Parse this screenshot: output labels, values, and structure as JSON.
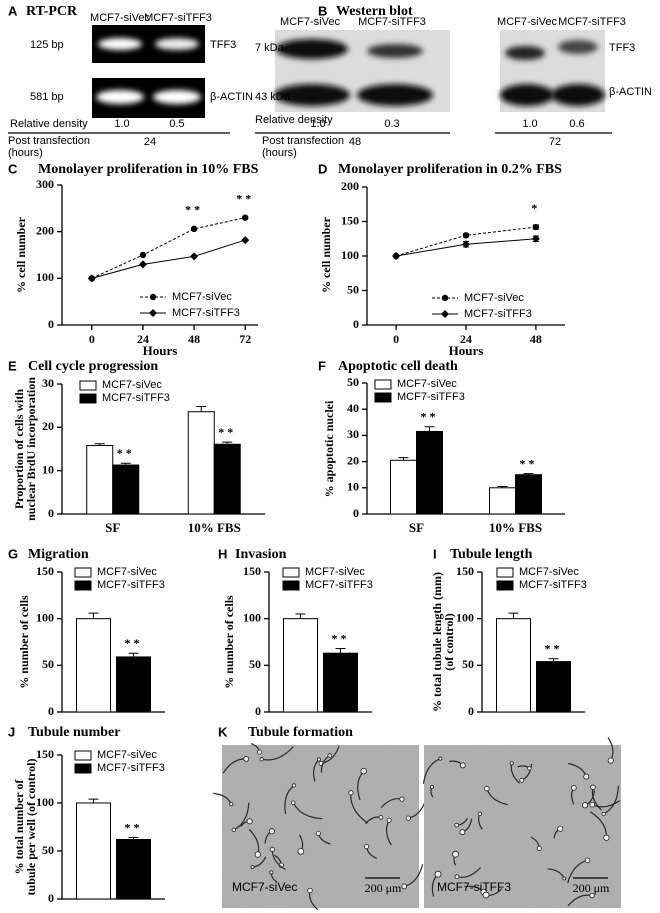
{
  "rt_pcr": {
    "panel_label": "A",
    "title": "RT-PCR",
    "lanes": [
      "MCF7-siVec",
      "MCF7-siTFF3"
    ],
    "sizes": [
      "125 bp",
      "581 bp"
    ],
    "targets": [
      "TFF3",
      "β-ACTIN"
    ],
    "density_label": "Relative density",
    "densities": [
      "1.0",
      "0.5"
    ],
    "time_label": [
      "Post transfection",
      "(hours)"
    ],
    "time": "24"
  },
  "western_blot": {
    "panel_label": "B",
    "title": "Western blot",
    "sizes": [
      "7 kDa",
      "43  kDa"
    ],
    "targets": [
      "TFF3",
      "β-ACTIN"
    ],
    "density_label": "Relative density",
    "time_label": [
      "Post transfection",
      "(hours)"
    ],
    "groups": [
      {
        "lanes": [
          "MCF7-siVec",
          "MCF7-siTFF3"
        ],
        "densities": [
          "1.0",
          "0.3"
        ],
        "time": "48"
      },
      {
        "lanes": [
          "MCF7-siVec",
          "MCF7-siTFF3"
        ],
        "densities": [
          "1.0",
          "0.6"
        ],
        "time": "72"
      }
    ]
  },
  "chart_data": [
    {
      "type": "line",
      "panel_label": "C",
      "title": "Monolayer proliferation in 10% FBS",
      "x_label": "Hours",
      "y_label": "% cell number",
      "x": [
        0,
        24,
        48,
        72
      ],
      "xlim": [
        -14,
        78
      ],
      "xticks": [
        0,
        24,
        48,
        72
      ],
      "ylim": [
        0,
        300
      ],
      "yticks": [
        0,
        100,
        200,
        300
      ],
      "series": [
        {
          "name": "MCF7-siVec",
          "color": "#000000",
          "line_style": "dashed",
          "marker": "circle",
          "values": [
            100,
            150,
            206,
            230
          ],
          "annotations": [
            null,
            null,
            "**",
            "**"
          ]
        },
        {
          "name": "MCF7-siTFF3",
          "color": "#000000",
          "line_style": "solid",
          "marker": "diamond",
          "values": [
            100,
            130,
            147,
            182
          ]
        }
      ]
    },
    {
      "type": "line",
      "panel_label": "D",
      "title": "Monolayer proliferation in 0.2% FBS",
      "x_label": "Hours",
      "y_label": "% cell number",
      "x": [
        0,
        24,
        48
      ],
      "xlim": [
        -10,
        58
      ],
      "xticks": [
        0,
        24,
        48
      ],
      "ylim": [
        0,
        200
      ],
      "yticks": [
        0,
        50,
        100,
        150,
        200
      ],
      "series": [
        {
          "name": "MCF7-siVec",
          "color": "#000000",
          "line_style": "dashed",
          "marker": "circle",
          "values": [
            100,
            130,
            142
          ],
          "errors": [
            0,
            2,
            3
          ],
          "annotations": [
            null,
            null,
            "*"
          ]
        },
        {
          "name": "MCF7-siTFF3",
          "color": "#000000",
          "line_style": "solid",
          "marker": "diamond",
          "values": [
            100,
            117,
            125
          ],
          "errors": [
            0,
            4,
            4
          ]
        }
      ]
    },
    {
      "type": "bar",
      "panel_label": "E",
      "title": "Cell cycle progression",
      "y_label": [
        "Proportion of cells with",
        "nuclear BrdU incorporation"
      ],
      "categories": [
        "SF",
        "10% FBS"
      ],
      "ylim": [
        0,
        30
      ],
      "yticks": [
        0,
        10,
        20,
        30
      ],
      "series": [
        {
          "name": "MCF7-siVec",
          "color": "#ffffff",
          "values": [
            15.8,
            23.6
          ],
          "errors": [
            0.4,
            1.2
          ]
        },
        {
          "name": "MCF7-siTFF3",
          "color": "#000000",
          "values": [
            11.3,
            16.1
          ],
          "errors": [
            0.4,
            0.5
          ],
          "annotations": [
            "**",
            "**"
          ]
        }
      ]
    },
    {
      "type": "bar",
      "panel_label": "F",
      "title": "Apoptotic cell death",
      "y_label": "% apoptotic nuclei",
      "categories": [
        "SF",
        "10% FBS"
      ],
      "ylim": [
        0,
        50
      ],
      "yticks": [
        0,
        10,
        20,
        30,
        40,
        50
      ],
      "series": [
        {
          "name": "MCF7-siVec",
          "color": "#ffffff",
          "values": [
            20.5,
            10
          ],
          "errors": [
            1,
            0.5
          ]
        },
        {
          "name": "MCF7-siTFF3",
          "color": "#000000",
          "values": [
            31.5,
            15
          ],
          "errors": [
            1.8,
            0.4
          ],
          "annotations": [
            "**",
            "**"
          ]
        }
      ]
    },
    {
      "type": "bar",
      "panel_label": "G",
      "title": "Migration",
      "y_label": "% number of cells",
      "ylim": [
        0,
        150
      ],
      "yticks": [
        0,
        50,
        100,
        150
      ],
      "series": [
        {
          "name": "MCF7-siVec",
          "color": "#ffffff",
          "values": [
            100
          ],
          "errors": [
            6
          ]
        },
        {
          "name": "MCF7-siTFF3",
          "color": "#000000",
          "values": [
            59
          ],
          "errors": [
            4
          ],
          "annotations": [
            "**"
          ]
        }
      ]
    },
    {
      "type": "bar",
      "panel_label": "H",
      "title": "Invasion",
      "y_label": "% number of cells",
      "ylim": [
        0,
        150
      ],
      "yticks": [
        0,
        50,
        100,
        150
      ],
      "series": [
        {
          "name": "MCF7-siVec",
          "color": "#ffffff",
          "values": [
            100
          ],
          "errors": [
            5
          ]
        },
        {
          "name": "MCF7-siTFF3",
          "color": "#000000",
          "values": [
            63
          ],
          "errors": [
            5
          ],
          "annotations": [
            "**"
          ]
        }
      ]
    },
    {
      "type": "bar",
      "panel_label": "I",
      "title": "Tubule length",
      "y_label": [
        "% total tubule length (mm)",
        "(of control)"
      ],
      "ylim": [
        0,
        150
      ],
      "yticks": [
        0,
        50,
        100,
        150
      ],
      "series": [
        {
          "name": "MCF7-siVec",
          "color": "#ffffff",
          "values": [
            100
          ],
          "errors": [
            6
          ]
        },
        {
          "name": "MCF7-siTFF3",
          "color": "#000000",
          "values": [
            54
          ],
          "errors": [
            3
          ],
          "annotations": [
            "**"
          ]
        }
      ]
    },
    {
      "type": "bar",
      "panel_label": "J",
      "title": "Tubule number",
      "y_label": [
        "% total number of",
        "tubule per well (of control)"
      ],
      "ylim": [
        0,
        150
      ],
      "yticks": [
        0,
        50,
        100,
        150
      ],
      "series": [
        {
          "name": "MCF7-siVec",
          "color": "#ffffff",
          "values": [
            100
          ],
          "errors": [
            4
          ]
        },
        {
          "name": "MCF7-siTFF3",
          "color": "#000000",
          "values": [
            62
          ],
          "errors": [
            2
          ],
          "annotations": [
            "**"
          ]
        }
      ]
    }
  ],
  "tubule_formation": {
    "panel_label": "K",
    "title": "Tubule formation",
    "images": [
      {
        "label": "MCF7-siVec",
        "scale": "200 μm"
      },
      {
        "label": "MCF7-siTFF3",
        "scale": "200 μm"
      }
    ]
  }
}
